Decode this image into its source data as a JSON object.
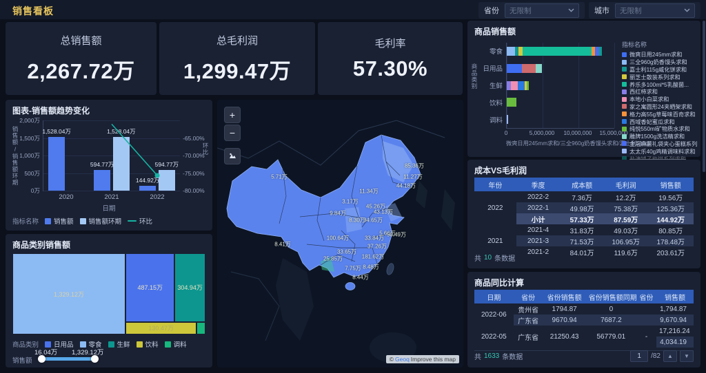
{
  "page": {
    "title": "销售看板"
  },
  "filters": {
    "province_label": "省份",
    "province_value": "无限制",
    "city_label": "城市",
    "city_value": "无限制"
  },
  "kpis": [
    {
      "label": "总销售额",
      "value": "2,267.72万"
    },
    {
      "label": "总毛利润",
      "value": "1,299.47万"
    },
    {
      "label": "毛利率",
      "value": "57.30%"
    }
  ],
  "chart_data": [
    {
      "id": "trend",
      "type": "bar",
      "title": "图表-销售额趋势变化",
      "categories": [
        "2020",
        "2021",
        "2022"
      ],
      "series": [
        {
          "name": "销售额",
          "color": "#4f7bee",
          "values": [
            1528.04,
            594.77,
            144.92
          ],
          "labels": [
            "1,528.04万",
            "594.77万",
            "144.92万"
          ]
        },
        {
          "name": "销售额环期",
          "color": "#a4c8f4",
          "values": [
            null,
            1528.04,
            594.77
          ],
          "labels": [
            null,
            "1,528.04万",
            "594.77万"
          ]
        }
      ],
      "line": {
        "name": "环比",
        "color": "#16b3a2",
        "values": [
          null,
          -61.07,
          -75.63
        ]
      },
      "y_axis": {
        "title": "销售额/销售额环期",
        "ticks": [
          "2,000万",
          "1,500万",
          "1,000万",
          "500万",
          "0万"
        ],
        "max": 2000
      },
      "y2_axis": {
        "title": "环比",
        "ticks": [
          "-65.00%",
          "-70.00%",
          "-75.00%",
          "-80.00%"
        ]
      },
      "x_axis": {
        "title": "日期"
      },
      "legend_title": "指标名称"
    },
    {
      "id": "treemap",
      "type": "treemap",
      "title": "商品类别销售额",
      "blocks": [
        {
          "name": "零食",
          "value": 1329.12,
          "label": "1,329.12万",
          "color": "#8cbaf3",
          "label_color": "#d8d2a8"
        },
        {
          "name": "日用品",
          "value": 487.15,
          "label": "487.15万",
          "color": "#4a72ec",
          "label_color": "#e8e2c0"
        },
        {
          "name": "生鲜",
          "value": 304.94,
          "label": "304.94万",
          "color": "#0d968f",
          "label_color": "#e8e2c0"
        },
        {
          "name": "饮料",
          "value": 130.47,
          "label": "130.47万",
          "color": "#cdc73b",
          "label_color": "#b3ae62"
        },
        {
          "name": "调料",
          "value": 16.04,
          "label": "",
          "color": "#17b77d",
          "label_color": "#ffffff"
        }
      ],
      "legend_title": "商品类别",
      "legend": [
        {
          "name": "日用品",
          "color": "#4a72ec"
        },
        {
          "name": "零食",
          "color": "#8cbaf3"
        },
        {
          "name": "生鲜",
          "color": "#0d968f"
        },
        {
          "name": "饮料",
          "color": "#cdc73b"
        },
        {
          "name": "调料",
          "color": "#17b77d"
        }
      ],
      "slider": {
        "label": "销售额",
        "min": "16.04万",
        "max": "1,329.12万"
      }
    },
    {
      "id": "product",
      "type": "bar",
      "title": "商品销售额",
      "y_axis_title": "商品类别",
      "categories": [
        "零食",
        "日用品",
        "生鲜",
        "饮料",
        "调料"
      ],
      "x_ticks": [
        "0",
        "5,000,000",
        "10,000,000",
        "15,000,000"
      ],
      "x_max": 1500,
      "x_axis_caption": "微爽日用245mm求和/三全960g奶香馒头求和/嘉士利115g.",
      "legend_title": "指标名称",
      "legend": [
        {
          "name": "微爽日用245mm求和",
          "color": "#3f6ef2"
        },
        {
          "name": "三全960g奶香馒头求和",
          "color": "#8cbaf3"
        },
        {
          "name": "嘉士利115g威化饼求和",
          "color": "#11978f"
        },
        {
          "name": "丽芝士散装系列求和",
          "color": "#d3c93e"
        },
        {
          "name": "养乐多100ml*5乳酸菌...",
          "color": "#15bd9b"
        },
        {
          "name": "西红柿求和",
          "color": "#8a7de6"
        },
        {
          "name": "本地小白菜求和",
          "color": "#f08fb1"
        },
        {
          "name": "家之寓圆形24夹晒架求和",
          "color": "#cf6a6d"
        },
        {
          "name": "格力高55g草莓味百奇求和",
          "color": "#f5923a"
        },
        {
          "name": "西域香妃蜜瓜求和",
          "color": "#2979e0"
        },
        {
          "name": "纯悦550ml矿物质水求和",
          "color": "#6abc3e"
        },
        {
          "name": "雕牌1500g洗洁精求和",
          "color": "#86d8cb"
        },
        {
          "name": "金冠麻薯礼袋夹心蛋糕系列...",
          "color": "#4a6cf0"
        },
        {
          "name": "太太乐40g鸡精调味料求和",
          "color": "#9cb9f4"
        },
        {
          "name": "盐津铺子梅饼系列求和",
          "color": "#0f9b8e",
          "dimmed": true
        }
      ],
      "bars": [
        {
          "category": "零食",
          "segments": [
            {
              "name": "三全960g奶香馒头求和",
              "color": "#8cbaf3",
              "value": 120
            },
            {
              "name": "嘉士利115g威化饼求和",
              "color": "#11978f",
              "value": 40
            },
            {
              "name": "丽芝士散装系列求和",
              "color": "#d3c93e",
              "value": 65
            },
            {
              "name": "养乐多100ml*5乳酸菌...",
              "color": "#15bd9b",
              "value": 955
            },
            {
              "name": "格力高55g草莓味百奇求和",
              "color": "#f5923a",
              "value": 50
            },
            {
              "name": "金冠麻薯礼袋夹心蛋糕系列...",
              "color": "#4a6cf0",
              "value": 55
            },
            {
              "name": "盐津铺子梅饼系列求和",
              "color": "#0f9b8e",
              "value": 44
            }
          ]
        },
        {
          "category": "日用品",
          "segments": [
            {
              "name": "微爽日用245mm求和",
              "color": "#3f6ef2",
              "value": 215
            },
            {
              "name": "家之寓圆形24夹晒架求和",
              "color": "#cf6a6d",
              "value": 185
            },
            {
              "name": "雕牌1500g洗洁精求和",
              "color": "#86d8cb",
              "value": 87
            }
          ]
        },
        {
          "category": "生鲜",
          "segments": [
            {
              "name": "西红柿求和",
              "color": "#8a7de6",
              "value": 55
            },
            {
              "name": "本地小白菜求和",
              "color": "#f08fb1",
              "value": 95
            },
            {
              "name": "西域香妃蜜瓜求和",
              "color": "#2979e0",
              "value": 100
            },
            {
              "name": "丽芝士散装系列求和",
              "color": "#d3c93e",
              "value": 25
            },
            {
              "name": "纯悦550ml矿物质水求和",
              "color": "#6abc3e",
              "value": 30
            }
          ]
        },
        {
          "category": "饮料",
          "segments": [
            {
              "name": "纯悦550ml矿物质水求和",
              "color": "#6abc3e",
              "value": 130
            }
          ]
        },
        {
          "category": "调料",
          "segments": [
            {
              "name": "太太乐40g鸡精调味料求和",
              "color": "#9cb9f4",
              "value": 16
            }
          ]
        }
      ]
    },
    {
      "id": "map",
      "type": "map",
      "region": "China",
      "points": [
        {
          "label": "5.71万",
          "x": 90,
          "y": 112
        },
        {
          "label": "8.41万",
          "x": 95,
          "y": 210
        },
        {
          "label": "85.36万",
          "x": 286,
          "y": 96
        },
        {
          "label": "11.27万",
          "x": 284,
          "y": 112
        },
        {
          "label": "44.18万",
          "x": 274,
          "y": 125
        },
        {
          "label": "11.34万",
          "x": 220,
          "y": 133
        },
        {
          "label": "3.17万",
          "x": 193,
          "y": 148
        },
        {
          "label": "45.26万",
          "x": 230,
          "y": 155
        },
        {
          "label": "9.84万",
          "x": 175,
          "y": 165
        },
        {
          "label": "43.13万",
          "x": 241,
          "y": 163
        },
        {
          "label": "8.30万",
          "x": 203,
          "y": 175
        },
        {
          "label": "34.65万",
          "x": 226,
          "y": 175
        },
        {
          "label": "5.66万",
          "x": 247,
          "y": 194
        },
        {
          "label": "50.49万",
          "x": 260,
          "y": 196
        },
        {
          "label": "100.64万",
          "x": 175,
          "y": 201
        },
        {
          "label": "33.84万",
          "x": 228,
          "y": 201
        },
        {
          "label": "37.26万",
          "x": 232,
          "y": 213
        },
        {
          "label": "33.65万",
          "x": 188,
          "y": 221
        },
        {
          "label": "181.62万",
          "x": 226,
          "y": 228
        },
        {
          "label": "25.85万",
          "x": 168,
          "y": 231
        },
        {
          "label": "7.75万",
          "x": 197,
          "y": 245
        },
        {
          "label": "8.48万",
          "x": 223,
          "y": 243
        },
        {
          "label": "8.44万",
          "x": 208,
          "y": 258
        }
      ]
    }
  ],
  "map": {
    "zoom_in": "+",
    "zoom_out": "−",
    "attribution": {
      "prefix": "©",
      "link": "Geoq",
      "suffix": "Improve this map"
    }
  },
  "cost_table": {
    "title": "成本VS毛利润",
    "columns": [
      "年份",
      "季度",
      "成本额",
      "毛利润",
      "销售额"
    ],
    "rows": [
      {
        "cells": [
          {
            "v": "2022",
            "rs": 3
          },
          {
            "v": "2022-2"
          },
          {
            "v": "7.36万"
          },
          {
            "v": "12.2万"
          },
          {
            "v": "19.56万"
          }
        ]
      },
      {
        "alt": true,
        "cells": [
          {
            "v": "2022-1"
          },
          {
            "v": "49.98万"
          },
          {
            "v": "75.38万"
          },
          {
            "v": "125.36万"
          }
        ]
      },
      {
        "subtotal": true,
        "cells": [
          {
            "v": "小计"
          },
          {
            "v": "57.33万"
          },
          {
            "v": "87.59万"
          },
          {
            "v": "144.92万"
          }
        ]
      },
      {
        "cells": [
          {
            "v": "2021",
            "rs": 3
          },
          {
            "v": "2021-4"
          },
          {
            "v": "31.83万"
          },
          {
            "v": "49.03万"
          },
          {
            "v": "80.85万"
          }
        ]
      },
      {
        "alt": true,
        "cells": [
          {
            "v": "2021-3"
          },
          {
            "v": "71.53万"
          },
          {
            "v": "106.95万"
          },
          {
            "v": "178.48万"
          }
        ]
      },
      {
        "cells": [
          {
            "v": "2021-2"
          },
          {
            "v": "84.01万"
          },
          {
            "v": "119.6万"
          },
          {
            "v": "203.61万"
          }
        ]
      }
    ],
    "footer": {
      "prefix": "共",
      "count": "10",
      "suffix": "条数据"
    }
  },
  "yoy_table": {
    "title": "商品同比计算",
    "columns": [
      "日期",
      "省份",
      "省份销售额",
      "省份销售额同期",
      "省份",
      "销售额"
    ],
    "rows": [
      {
        "cells": [
          {
            "v": "2022-06",
            "rs": 2
          },
          {
            "v": "贵州省"
          },
          {
            "v": "1794.87"
          },
          {
            "v": "0"
          },
          {
            "v": ""
          },
          {
            "v": "1,794.87"
          }
        ]
      },
      {
        "alt": true,
        "cells": [
          {
            "v": "广东省"
          },
          {
            "v": "9670.94"
          },
          {
            "v": "7687.2"
          },
          {
            "v": ""
          },
          {
            "v": "9,670.94"
          }
        ]
      },
      {
        "cells": [
          {
            "v": "2022-05",
            "rs": 2
          },
          {
            "v": "广东省",
            "rs": 2
          },
          {
            "v": "21250.43",
            "rs": 2
          },
          {
            "v": "56779.01",
            "rs": 2
          },
          {
            "v": "-",
            "rs": 2
          },
          {
            "v": "17,216.24"
          }
        ]
      },
      {
        "alt": true,
        "cells": [
          {
            "v": "4,034.19"
          }
        ]
      }
    ],
    "footer": {
      "prefix": "共",
      "count": "1633",
      "suffix": "条数据",
      "page": "1",
      "pages": "/82"
    }
  }
}
